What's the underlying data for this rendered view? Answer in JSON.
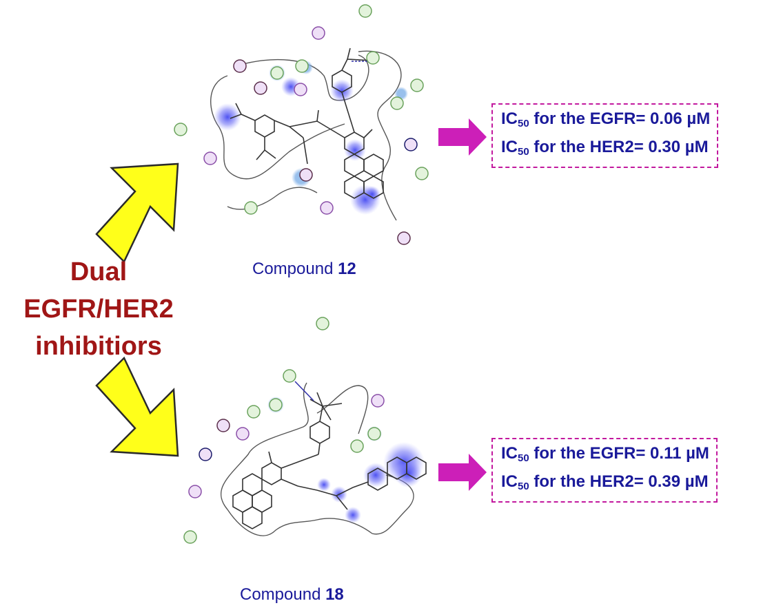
{
  "main_label": {
    "lines": [
      "Dual",
      "EGFR/HER2",
      "inhibitiors"
    ]
  },
  "compounds": [
    {
      "caption_prefix": "Compound ",
      "caption_number": "12",
      "results": [
        {
          "ic_text": "IC",
          "ic_sub": "50",
          "label": " for the EGFR= ",
          "value": "0.06 µM"
        },
        {
          "ic_text": "IC",
          "ic_sub": "50",
          "label": " for the HER2= ",
          "value": "0.30 µM"
        }
      ]
    },
    {
      "caption_prefix": "Compound ",
      "caption_number": "18",
      "results": [
        {
          "ic_text": "IC",
          "ic_sub": "50",
          "label": " for the EGFR= ",
          "value": "0.11 µM"
        },
        {
          "ic_text": "IC",
          "ic_sub": "50",
          "label": " for the HER2= ",
          "value": "0.39 µM"
        }
      ]
    }
  ],
  "colors": {
    "title": "#a01616",
    "text_blue": "#1a1a9a",
    "box_border": "#c2189e",
    "arrow_yellow": "#ffff1a",
    "arrow_magenta": "#cc1fb8",
    "residue_green": "#e3f3dc",
    "residue_purple": "#efe0f7",
    "highlight_blue": "#4a52ff"
  }
}
